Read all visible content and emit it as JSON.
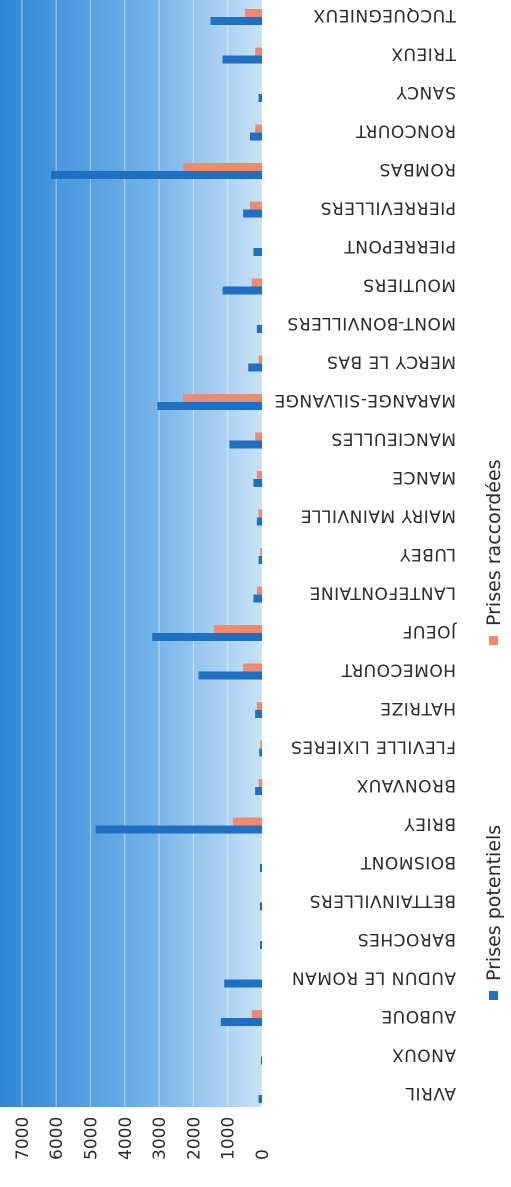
{
  "chart_data": {
    "type": "bar",
    "orientation": "horizontal",
    "categories": [
      "AVRIL",
      "ANOUX",
      "AUBOUE",
      "AUDUN LE ROMAN",
      "BAROCHES",
      "BETTAINVILLERS",
      "BOISMONT",
      "BRIEY",
      "BRONVAUX",
      "FLEVILLE LIXIERES",
      "HATRIZE",
      "HOMECOURT",
      "JOEUF",
      "LANTEFONTAINE",
      "LUBEY",
      "MAIRY MAINVILLE",
      "MANCE",
      "MANCIEULLES",
      "MARANGE-SILVANGE",
      "MERCY LE BAS",
      "MONT-BONVILLERS",
      "MOUTIERS",
      "PIERREPONT",
      "PIERREVILLERS",
      "ROMBAS",
      "RONCOURT",
      "SANCY",
      "TRIEUX",
      "TUCQUEGNIEUX"
    ],
    "series": [
      {
        "name": "Prises potentiels",
        "color": "#1f6fc2",
        "values": [
          100,
          30,
          1200,
          1100,
          60,
          60,
          60,
          4850,
          200,
          80,
          200,
          1850,
          3200,
          250,
          100,
          150,
          250,
          950,
          3050,
          400,
          150,
          1150,
          250,
          550,
          6150,
          350,
          100,
          1150,
          1500
        ]
      },
      {
        "name": "Prises raccordées",
        "color": "#f08a6e",
        "values": [
          0,
          0,
          300,
          0,
          0,
          0,
          0,
          850,
          100,
          50,
          150,
          550,
          1400,
          150,
          50,
          100,
          150,
          200,
          2300,
          100,
          0,
          300,
          0,
          350,
          2300,
          200,
          0,
          200,
          500
        ]
      }
    ],
    "xlim": [
      0,
      7000
    ],
    "ticks": [
      "0",
      "1000",
      "2000",
      "3000",
      "4000",
      "5000",
      "6000",
      "7000"
    ],
    "grid": true,
    "legend_position": "bottom",
    "rotation": "rotated 90 degrees, upside down"
  }
}
